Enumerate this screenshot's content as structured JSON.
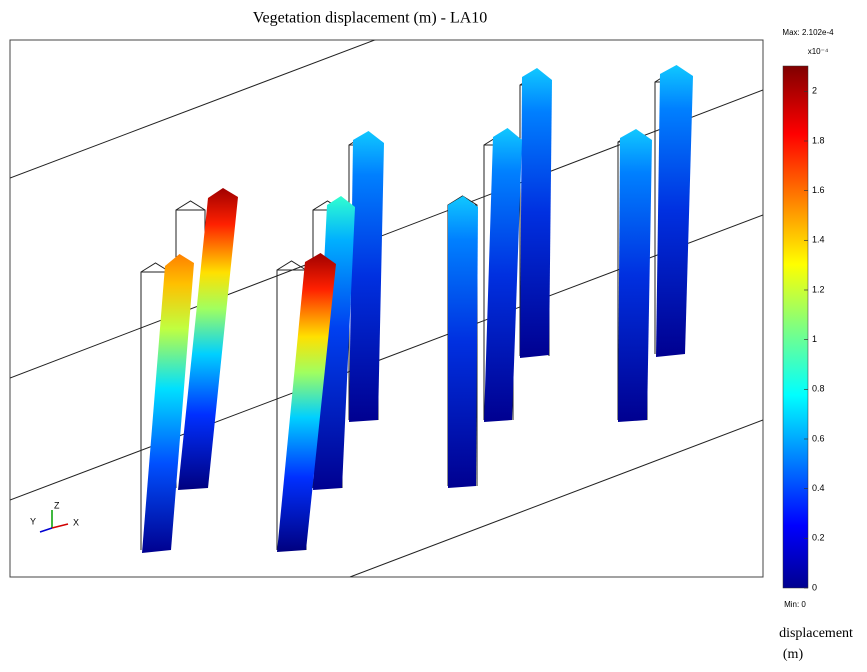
{
  "title": "Vegetation displacement (m) - LA10",
  "colorbar": {
    "max_label": "Max: 2.102e-4",
    "exponent": "x10⁻⁴",
    "min_label": "Min: 0",
    "min": 0,
    "max": 2.102,
    "ticks": [
      0,
      0.2,
      0.4,
      0.6,
      0.8,
      1,
      1.2,
      1.4,
      1.6,
      1.8,
      2
    ],
    "label": [
      "displacement",
      "(m)"
    ]
  },
  "axes_triad": {
    "x": "X",
    "y": "Y",
    "z": "Z"
  }
}
